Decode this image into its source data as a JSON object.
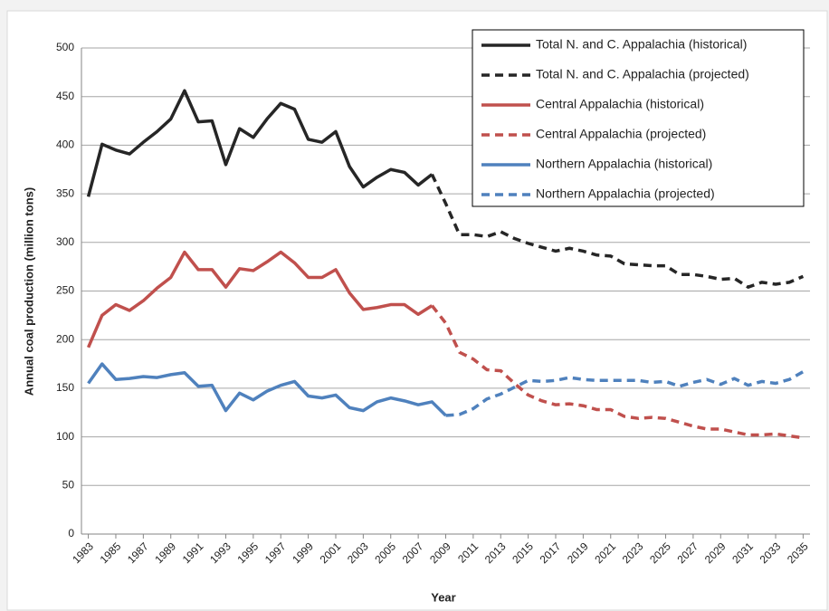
{
  "chart_data": {
    "type": "line",
    "x_label": "Year",
    "y_label": "Annual coal production (million tons)",
    "x": [
      1983,
      1984,
      1985,
      1986,
      1987,
      1988,
      1989,
      1990,
      1991,
      1992,
      1993,
      1994,
      1995,
      1996,
      1997,
      1998,
      1999,
      2000,
      2001,
      2002,
      2003,
      2004,
      2005,
      2006,
      2007,
      2008,
      2009,
      2010,
      2011,
      2012,
      2013,
      2014,
      2015,
      2016,
      2017,
      2018,
      2019,
      2020,
      2021,
      2022,
      2023,
      2024,
      2025,
      2026,
      2027,
      2028,
      2029,
      2030,
      2031,
      2032,
      2033,
      2034,
      2035
    ],
    "xlim": [
      1982.5,
      2035.5
    ],
    "xticks": [
      1983,
      1985,
      1987,
      1989,
      1991,
      1993,
      1995,
      1997,
      1999,
      2001,
      2003,
      2005,
      2007,
      2009,
      2011,
      2013,
      2015,
      2017,
      2019,
      2021,
      2023,
      2025,
      2027,
      2029,
      2031,
      2033,
      2035
    ],
    "ylim": [
      0,
      500
    ],
    "yticks": [
      0,
      50,
      100,
      150,
      200,
      250,
      300,
      350,
      400,
      450,
      500
    ],
    "grid": true,
    "legend": "top-right",
    "series": [
      {
        "name": "Total N. and C. Appalachia (historical)",
        "color": "#262626",
        "dashed": false,
        "values": [
          347,
          401,
          395,
          391,
          403,
          414,
          427,
          456,
          424,
          425,
          380,
          417,
          408,
          427,
          443,
          437,
          406,
          403,
          414,
          378,
          357,
          367,
          375,
          372,
          359,
          370,
          null,
          null,
          null,
          null,
          null,
          null,
          null,
          null,
          null,
          null,
          null,
          null,
          null,
          null,
          null,
          null,
          null,
          null,
          null,
          null,
          null,
          null,
          null,
          null,
          null,
          null,
          null
        ]
      },
      {
        "name": "Total N. and C. Appalachia (projected)",
        "color": "#262626",
        "dashed": true,
        "values": [
          null,
          null,
          null,
          null,
          null,
          null,
          null,
          null,
          null,
          null,
          null,
          null,
          null,
          null,
          null,
          null,
          null,
          null,
          null,
          null,
          null,
          null,
          null,
          null,
          null,
          370,
          340,
          308,
          308,
          306,
          311,
          304,
          299,
          295,
          291,
          294,
          291,
          287,
          286,
          278,
          277,
          276,
          276,
          267,
          267,
          265,
          262,
          263,
          254,
          259,
          257,
          259,
          265
        ]
      },
      {
        "name": "Central Appalachia (historical)",
        "color": "#c0504d",
        "dashed": false,
        "values": [
          192,
          225,
          236,
          230,
          240,
          253,
          264,
          290,
          272,
          272,
          254,
          273,
          271,
          280,
          290,
          279,
          264,
          264,
          272,
          248,
          231,
          233,
          236,
          236,
          226,
          235,
          null,
          null,
          null,
          null,
          null,
          null,
          null,
          null,
          null,
          null,
          null,
          null,
          null,
          null,
          null,
          null,
          null,
          null,
          null,
          null,
          null,
          null,
          null,
          null,
          null,
          null,
          null
        ]
      },
      {
        "name": "Central Appalachia (projected)",
        "color": "#c0504d",
        "dashed": true,
        "values": [
          null,
          null,
          null,
          null,
          null,
          null,
          null,
          null,
          null,
          null,
          null,
          null,
          null,
          null,
          null,
          null,
          null,
          null,
          null,
          null,
          null,
          null,
          null,
          null,
          null,
          235,
          217,
          187,
          180,
          169,
          168,
          155,
          143,
          137,
          133,
          134,
          132,
          128,
          128,
          121,
          119,
          120,
          119,
          115,
          111,
          108,
          108,
          105,
          102,
          102,
          103,
          101,
          99
        ]
      },
      {
        "name": "Northern Appalachia (historical)",
        "color": "#4f81bd",
        "dashed": false,
        "values": [
          155,
          175,
          159,
          160,
          162,
          161,
          164,
          166,
          152,
          153,
          127,
          145,
          138,
          147,
          153,
          157,
          142,
          140,
          143,
          130,
          127,
          136,
          140,
          137,
          133,
          136,
          122,
          null,
          null,
          null,
          null,
          null,
          null,
          null,
          null,
          null,
          null,
          null,
          null,
          null,
          null,
          null,
          null,
          null,
          null,
          null,
          null,
          null,
          null,
          null,
          null,
          null,
          null
        ]
      },
      {
        "name": "Northern Appalachia (projected)",
        "color": "#4f81bd",
        "dashed": true,
        "values": [
          null,
          null,
          null,
          null,
          null,
          null,
          null,
          null,
          null,
          null,
          null,
          null,
          null,
          null,
          null,
          null,
          null,
          null,
          null,
          null,
          null,
          null,
          null,
          null,
          null,
          null,
          122,
          123,
          129,
          139,
          144,
          151,
          158,
          157,
          158,
          161,
          159,
          158,
          158,
          158,
          158,
          156,
          157,
          152,
          156,
          159,
          154,
          160,
          153,
          157,
          155,
          159,
          167
        ]
      }
    ]
  }
}
